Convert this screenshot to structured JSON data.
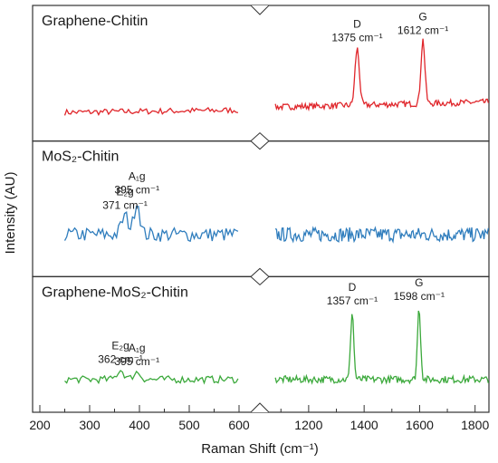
{
  "chart_data": {
    "type": "line",
    "xlabel": "Raman Shift (cm⁻¹)",
    "ylabel": "Intensity (AU)",
    "broken_x_axis": true,
    "x_ticks_left": [
      200,
      300,
      400,
      500,
      600
    ],
    "x_ticks_right": [
      1200,
      1400,
      1600,
      1800
    ],
    "xlim_left": [
      200,
      620
    ],
    "xlim_right": [
      1060,
      1850
    ],
    "panels": [
      {
        "title": "Graphene-Chitin",
        "color": "#e0262b",
        "baseline": 0.12,
        "slope": 0.1,
        "noise": 0.03,
        "peaks": [
          {
            "x": 1375,
            "height": 0.55,
            "width": 11,
            "label": "D",
            "value": "1375 cm⁻¹"
          },
          {
            "x": 1612,
            "height": 0.62,
            "width": 10,
            "label": "G",
            "value": "1612 cm⁻¹"
          }
        ]
      },
      {
        "title": "MoS₂-Chitin",
        "color": "#2f7dbd",
        "baseline": 0.25,
        "slope": 0.0,
        "noise": 0.07,
        "peaks": [
          {
            "x": 371,
            "height": 0.18,
            "width": 10,
            "label": "E₂g",
            "value": "371 cm⁻¹"
          },
          {
            "x": 395,
            "height": 0.33,
            "width": 8,
            "label": "A₁g",
            "value": "395 cm⁻¹"
          }
        ]
      },
      {
        "title": "Graphene-MoS₂-Chitin",
        "color": "#3ca93c",
        "baseline": 0.16,
        "slope": 0.0,
        "noise": 0.035,
        "peaks": [
          {
            "x": 362,
            "height": 0.09,
            "width": 10,
            "label": "E₂g",
            "value": "362 cm⁻¹"
          },
          {
            "x": 395,
            "height": 0.07,
            "width": 10,
            "label": "A₁g",
            "value": "395 cm⁻¹"
          },
          {
            "x": 1357,
            "height": 0.66,
            "width": 8,
            "label": "D",
            "value": "1357 cm⁻¹"
          },
          {
            "x": 1598,
            "height": 0.7,
            "width": 8,
            "label": "G",
            "value": "1598 cm⁻¹"
          }
        ]
      }
    ]
  }
}
